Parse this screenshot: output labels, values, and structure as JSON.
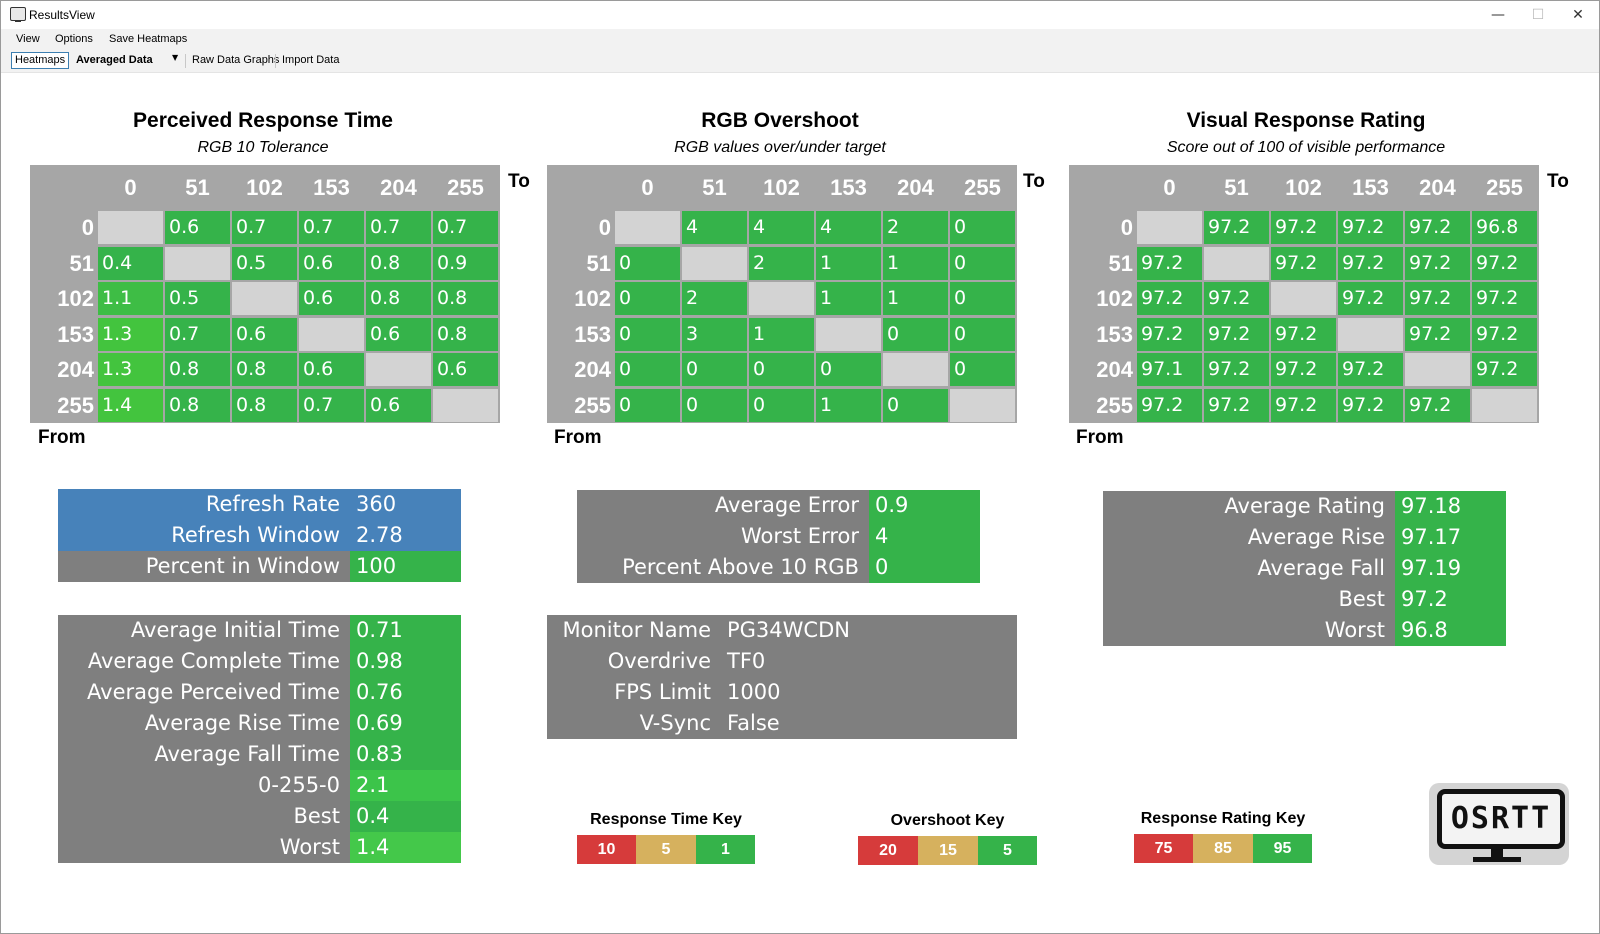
{
  "window": {
    "title": "ResultsView",
    "minimize": "—",
    "maximize": "☐",
    "close": "✕"
  },
  "menu": [
    "View",
    "Options",
    "Save Heatmaps"
  ],
  "toolbar": {
    "heatmaps_tab": "Heatmaps",
    "mode_select": "Averaged Data",
    "raw_data_graphs": "Raw Data Graphs",
    "import_data": "Import Data"
  },
  "colors": {
    "header_gray": "#a6a6a6",
    "empty_cell": "#d3d3d3",
    "good_green": "#35b34a",
    "panel_gray": "#7f7f7f",
    "refresh_blue": "#4782ba",
    "key_red": "#d63b3b",
    "key_yellow": "#d6b15e"
  },
  "heatmaps": [
    {
      "title": "Perceived Response Time",
      "subtitle": "RGB 10 Tolerance",
      "to_label": "To",
      "from_label": "From",
      "columns": [
        "0",
        "51",
        "102",
        "153",
        "204",
        "255"
      ],
      "rows": [
        {
          "label": "0",
          "cells": [
            "",
            "0.6",
            "0.7",
            "0.7",
            "0.7",
            "0.7"
          ]
        },
        {
          "label": "51",
          "cells": [
            "0.4",
            "",
            "0.5",
            "0.6",
            "0.8",
            "0.9"
          ]
        },
        {
          "label": "102",
          "cells": [
            "1.1",
            "0.5",
            "",
            "0.6",
            "0.8",
            "0.8"
          ]
        },
        {
          "label": "153",
          "cells": [
            "1.3",
            "0.7",
            "0.6",
            "",
            "0.6",
            "0.8"
          ]
        },
        {
          "label": "204",
          "cells": [
            "1.3",
            "0.8",
            "0.8",
            "0.6",
            "",
            "0.6"
          ]
        },
        {
          "label": "255",
          "cells": [
            "1.4",
            "0.8",
            "0.8",
            "0.7",
            "0.6",
            ""
          ]
        }
      ]
    },
    {
      "title": "RGB Overshoot",
      "subtitle": "RGB values over/under target",
      "to_label": "To",
      "from_label": "From",
      "columns": [
        "0",
        "51",
        "102",
        "153",
        "204",
        "255"
      ],
      "rows": [
        {
          "label": "0",
          "cells": [
            "",
            "4",
            "4",
            "4",
            "2",
            "0"
          ]
        },
        {
          "label": "51",
          "cells": [
            "0",
            "",
            "2",
            "1",
            "1",
            "0"
          ]
        },
        {
          "label": "102",
          "cells": [
            "0",
            "2",
            "",
            "1",
            "1",
            "0"
          ]
        },
        {
          "label": "153",
          "cells": [
            "0",
            "3",
            "1",
            "",
            "0",
            "0"
          ]
        },
        {
          "label": "204",
          "cells": [
            "0",
            "0",
            "0",
            "0",
            "",
            "0"
          ]
        },
        {
          "label": "255",
          "cells": [
            "0",
            "0",
            "0",
            "1",
            "0",
            ""
          ]
        }
      ]
    },
    {
      "title": "Visual Response Rating",
      "subtitle": "Score out of 100 of visible performance",
      "to_label": "To",
      "from_label": "From",
      "columns": [
        "0",
        "51",
        "102",
        "153",
        "204",
        "255"
      ],
      "rows": [
        {
          "label": "0",
          "cells": [
            "",
            "97.2",
            "97.2",
            "97.2",
            "97.2",
            "96.8"
          ]
        },
        {
          "label": "51",
          "cells": [
            "97.2",
            "",
            "97.2",
            "97.2",
            "97.2",
            "97.2"
          ]
        },
        {
          "label": "102",
          "cells": [
            "97.2",
            "97.2",
            "",
            "97.2",
            "97.2",
            "97.2"
          ]
        },
        {
          "label": "153",
          "cells": [
            "97.2",
            "97.2",
            "97.2",
            "",
            "97.2",
            "97.2"
          ]
        },
        {
          "label": "204",
          "cells": [
            "97.1",
            "97.2",
            "97.2",
            "97.2",
            "",
            "97.2"
          ]
        },
        {
          "label": "255",
          "cells": [
            "97.2",
            "97.2",
            "97.2",
            "97.2",
            "97.2",
            ""
          ]
        }
      ]
    }
  ],
  "refresh_panel": [
    {
      "label": "Refresh Rate",
      "value": "360"
    },
    {
      "label": "Refresh Window",
      "value": "2.78"
    },
    {
      "label": "Percent in Window",
      "value": "100"
    }
  ],
  "time_panel": [
    {
      "label": "Average Initial Time",
      "value": "0.71"
    },
    {
      "label": "Average Complete Time",
      "value": "0.98"
    },
    {
      "label": "Average Perceived Time",
      "value": "0.76"
    },
    {
      "label": "Average Rise Time",
      "value": "0.69"
    },
    {
      "label": "Average Fall Time",
      "value": "0.83"
    },
    {
      "label": "0-255-0",
      "value": "2.1"
    },
    {
      "label": "Best",
      "value": "0.4"
    },
    {
      "label": "Worst",
      "value": "1.4"
    }
  ],
  "error_panel": [
    {
      "label": "Average Error",
      "value": "0.9"
    },
    {
      "label": "Worst Error",
      "value": "4"
    },
    {
      "label": "Percent Above 10 RGB",
      "value": "0"
    }
  ],
  "monitor_panel": [
    {
      "label": "Monitor Name",
      "value": "PG34WCDN"
    },
    {
      "label": "Overdrive",
      "value": "TF0"
    },
    {
      "label": "FPS Limit",
      "value": "1000"
    },
    {
      "label": "V-Sync",
      "value": "False"
    }
  ],
  "rating_panel": [
    {
      "label": "Average Rating",
      "value": "97.18"
    },
    {
      "label": "Average Rise",
      "value": "97.17"
    },
    {
      "label": "Average Fall",
      "value": "97.19"
    },
    {
      "label": "Best",
      "value": "97.2"
    },
    {
      "label": "Worst",
      "value": "96.8"
    }
  ],
  "keys": [
    {
      "title": "Response Time Key",
      "values": [
        "10",
        "5",
        "1"
      ]
    },
    {
      "title": "Overshoot Key",
      "values": [
        "20",
        "15",
        "5"
      ]
    },
    {
      "title": "Response Rating Key",
      "values": [
        "75",
        "85",
        "95"
      ]
    }
  ],
  "logo": {
    "text": "OSRTT",
    "icon": "monitor-logo-icon"
  }
}
